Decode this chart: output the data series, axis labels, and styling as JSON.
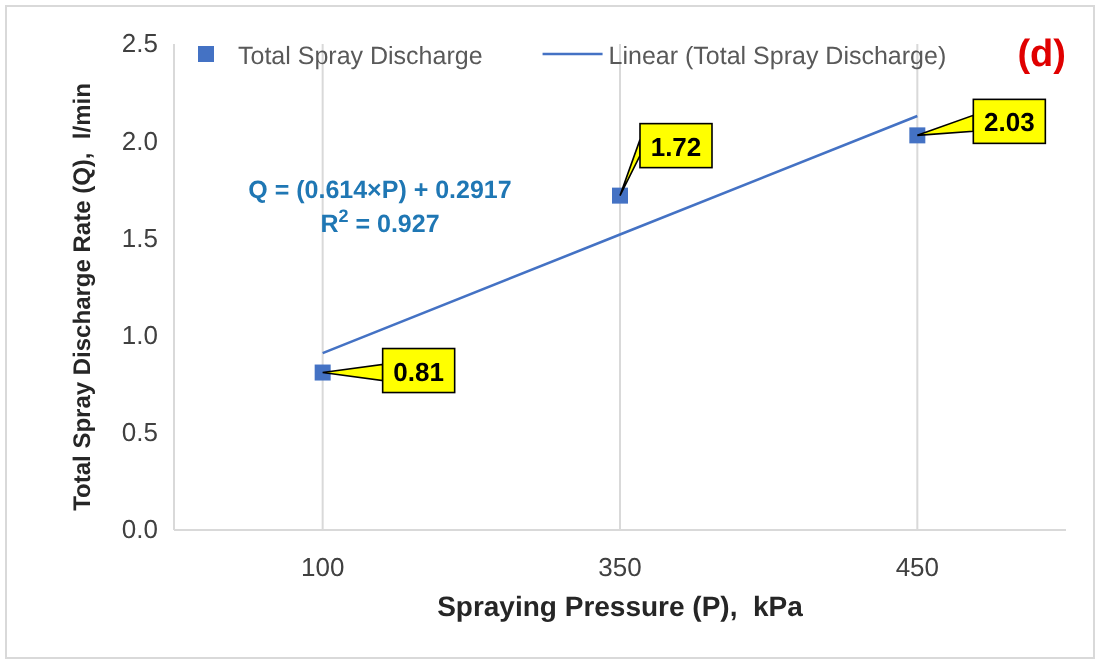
{
  "chart_data": {
    "type": "scatter",
    "title": "(d)",
    "xlabel": "Spraying Pressure (P),  kPa",
    "ylabel": "Total Spray Discharge Rate (Q),  l/min",
    "categories": [
      "100",
      "350",
      "450"
    ],
    "series": [
      {
        "name": "Total Spray Discharge",
        "color": "#4472c4",
        "values": [
          0.81,
          1.72,
          2.03
        ],
        "data_labels": true,
        "marker": "square"
      },
      {
        "name": "Linear (Total Spray Discharge)",
        "type": "line",
        "color": "#4472c4",
        "values": [
          0.91,
          1.52,
          2.13
        ],
        "marker": "none",
        "line_style": "solid"
      }
    ],
    "ylim": [
      0,
      2.5
    ],
    "yticks": [
      {
        "value": 0,
        "label": "0.0"
      },
      {
        "value": 0.5,
        "label": "0.5"
      },
      {
        "value": 1,
        "label": "1.0"
      },
      {
        "value": 1.5,
        "label": "1.5"
      },
      {
        "value": 2,
        "label": "2.0"
      },
      {
        "value": 2.5,
        "label": "2.5"
      }
    ],
    "grid": "x",
    "legend": "top",
    "annotations": [
      "Q = (0.614×P) + 0.2917",
      "R$^{2}$ = 0.927"
    ]
  }
}
